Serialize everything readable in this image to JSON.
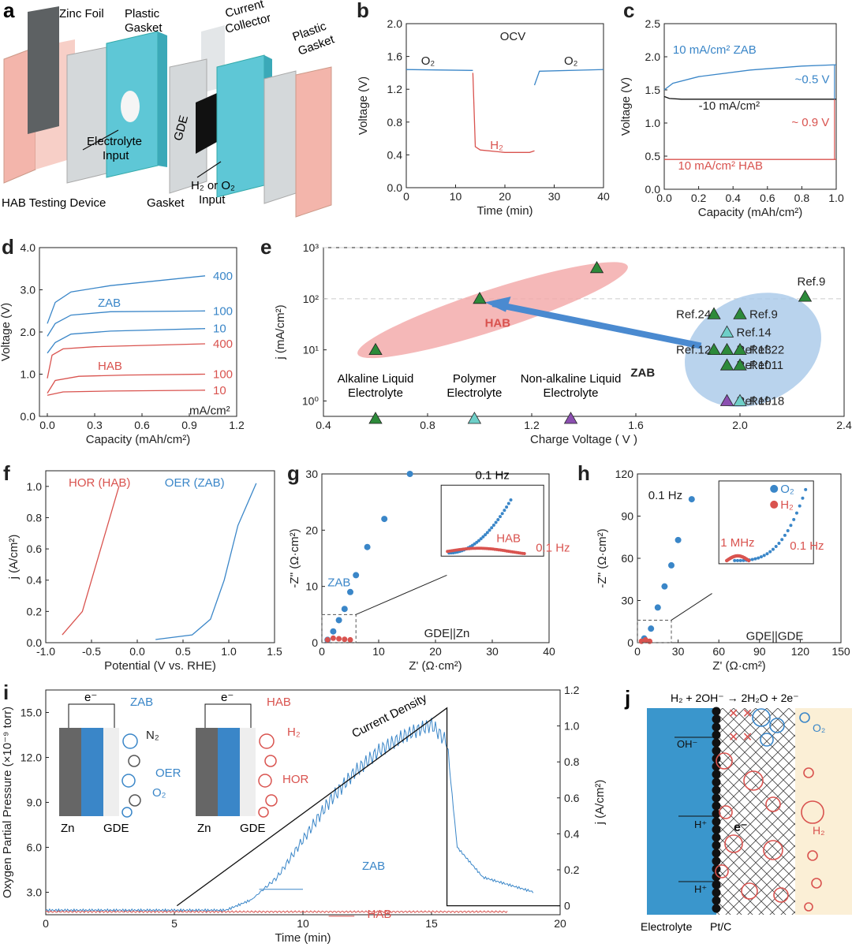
{
  "colors": {
    "blue": "#3a86c8",
    "red": "#d9534f",
    "lightblue": "#5ec7d6",
    "pink": "#f3a6a6",
    "green": "#2d8a3a",
    "purple": "#8b4fb0",
    "teal": "#6ecfc8",
    "black": "#111111"
  },
  "panels": {
    "a": {
      "label": "a",
      "zinc_foil": "Zinc Foil",
      "plastic_gasket_1": [
        "Plastic",
        "Gasket"
      ],
      "current_collector": [
        "Current",
        "Collector"
      ],
      "plastic_gasket_2": [
        "Plastic",
        "Gasket"
      ],
      "gde": "GDE",
      "electrolyte_input": [
        "Electrolyte",
        "Input"
      ],
      "gas_input": [
        "H₂ or O₂",
        "Input"
      ],
      "gasket": "Gasket",
      "device": "HAB Testing Device"
    },
    "b": {
      "label": "b",
      "ocv": "OCV",
      "o2_left": "O₂",
      "o2_right": "O₂",
      "h2": "H₂"
    },
    "c": {
      "label": "c",
      "zab_label": "10 mA/cm²  ZAB",
      "neg_label": "-10 mA/cm²",
      "hab_label": "10 mA/cm²  HAB",
      "gap1": "~0.5 V",
      "gap2": "~ 0.9 V"
    },
    "d": {
      "label": "d",
      "zab": "ZAB",
      "hab": "HAB",
      "unit": "mA/cm²"
    },
    "e": {
      "label": "e",
      "hab": "HAB",
      "zab": "ZAB",
      "cat1": [
        "Alkaline Liquid",
        "Electrolyte"
      ],
      "cat2": [
        "Polymer",
        "Electrolyte"
      ],
      "cat3": [
        "Non-alkaline Liquid",
        "Electrolyte"
      ]
    },
    "f": {
      "label": "f",
      "hor": "HOR (HAB)",
      "oer": "OER (ZAB)"
    },
    "g": {
      "label": "g",
      "zab": "ZAB",
      "hab": "HAB",
      "hz1": "0.1 Hz",
      "hz2": "0.1 Hz",
      "cell": "GDE||Zn"
    },
    "h": {
      "label": "h",
      "hz": "0.1 Hz",
      "o2": "O₂",
      "h2": "H₂",
      "mhz": "1 MHz",
      "hz2": "0.1 Hz",
      "cell": "GDE||GDE"
    },
    "i": {
      "label": "i",
      "current_density": "Current Density",
      "zab": "ZAB",
      "hab": "HAB",
      "zab_title": "ZAB",
      "hab_title": "HAB",
      "zn": "Zn",
      "gde": "GDE",
      "e": "e⁻",
      "n2": "N₂",
      "oer": "OER",
      "o2": "O₂",
      "h2": "H₂",
      "hor": "HOR"
    },
    "j": {
      "label": "j",
      "reaction": "H₂ + 2OH⁻ → 2H₂O + 2e⁻",
      "oh": "OH⁻",
      "h1": "H⁺",
      "h2": "H⁺",
      "e": "e⁻",
      "o2": "O₂",
      "h2gas": "H₂",
      "electrolyte": "Electrolyte",
      "ptc": "Pt/C"
    }
  },
  "chart_data": [
    {
      "id": "b",
      "type": "line",
      "xlabel": "Time (min)",
      "ylabel": "Voltage (V)",
      "xlim": [
        0,
        40
      ],
      "ylim": [
        0,
        2.0
      ],
      "xticks": [
        "0",
        "10",
        "20",
        "30",
        "40"
      ],
      "yticks": [
        "0.0",
        "0.4",
        "0.8",
        "1.2",
        "1.6",
        "2.0"
      ],
      "series": [
        {
          "name": "O₂",
          "x": [
            0,
            13.5
          ],
          "y": [
            1.44,
            1.43
          ]
        },
        {
          "name": "H₂",
          "x": [
            13.5,
            14,
            15,
            20,
            25,
            26
          ],
          "y": [
            1.4,
            0.5,
            0.46,
            0.43,
            0.43,
            0.45
          ]
        },
        {
          "name": "O₂",
          "x": [
            26,
            27,
            40
          ],
          "y": [
            1.25,
            1.42,
            1.44
          ]
        }
      ]
    },
    {
      "id": "c",
      "type": "line",
      "xlabel": "Capacity (mAh/cm²)",
      "ylabel": "Voltage (V)",
      "xlim": [
        0,
        1.0
      ],
      "ylim": [
        0,
        2.5
      ],
      "xticks": [
        "0.0",
        "0.2",
        "0.4",
        "0.6",
        "0.8",
        "1.0"
      ],
      "yticks": [
        "0.0",
        "0.5",
        "1.0",
        "1.5",
        "2.0",
        "2.5"
      ],
      "series": [
        {
          "name": "10 mA/cm² ZAB",
          "x": [
            0,
            0.05,
            0.2,
            0.5,
            0.8,
            1.0
          ],
          "y": [
            1.5,
            1.6,
            1.7,
            1.8,
            1.86,
            1.88
          ]
        },
        {
          "name": "-10 mA/cm²",
          "x": [
            0,
            0.03,
            0.1,
            1.0
          ],
          "y": [
            1.4,
            1.37,
            1.36,
            1.36
          ]
        },
        {
          "name": "10 mA/cm² HAB",
          "x": [
            0,
            1.0
          ],
          "y": [
            0.45,
            0.45
          ]
        }
      ]
    },
    {
      "id": "d",
      "type": "line",
      "xlabel": "Capacity (mAh/cm²)",
      "ylabel": "Voltage (V)",
      "xlim": [
        -0.05,
        1.2
      ],
      "ylim": [
        0,
        4.0
      ],
      "xticks": [
        "0.0",
        "0.3",
        "0.6",
        "0.9",
        "1.2"
      ],
      "yticks": [
        "0.0",
        "1.0",
        "2.0",
        "3.0",
        "4.0"
      ],
      "series": [
        {
          "name": "400",
          "color": "blue",
          "x": [
            0,
            0.05,
            0.15,
            0.4,
            1.0
          ],
          "y": [
            2.2,
            2.7,
            2.95,
            3.1,
            3.33
          ]
        },
        {
          "name": "100",
          "color": "blue",
          "x": [
            0,
            0.05,
            0.15,
            0.4,
            1.0
          ],
          "y": [
            1.9,
            2.2,
            2.4,
            2.48,
            2.5
          ]
        },
        {
          "name": "10",
          "color": "blue",
          "x": [
            0,
            0.05,
            0.15,
            0.4,
            1.0
          ],
          "y": [
            1.5,
            1.75,
            1.95,
            2.02,
            2.08
          ]
        },
        {
          "name": "400",
          "color": "red",
          "x": [
            0,
            0.03,
            0.1,
            0.3,
            1.0
          ],
          "y": [
            0.9,
            1.45,
            1.6,
            1.65,
            1.72
          ]
        },
        {
          "name": "100",
          "color": "red",
          "x": [
            0,
            0.05,
            0.2,
            0.5,
            1.0
          ],
          "y": [
            0.55,
            0.85,
            0.95,
            0.98,
            1.0
          ]
        },
        {
          "name": "10",
          "color": "red",
          "x": [
            0,
            0.1,
            0.4,
            1.0
          ],
          "y": [
            0.5,
            0.58,
            0.6,
            0.62
          ]
        }
      ]
    },
    {
      "id": "e",
      "type": "scatter",
      "xlabel": "Charge Voltage ( V )",
      "ylabel": "j (mA/cm²)",
      "xlim": [
        0.4,
        2.4
      ],
      "ylog": true,
      "ylim": [
        0.5,
        1000
      ],
      "xticks": [
        "0.4",
        "0.8",
        "1.2",
        "1.6",
        "2.0",
        "2.4"
      ],
      "points": [
        {
          "x": 0.6,
          "y": 10,
          "c": "green"
        },
        {
          "x": 1.0,
          "y": 100,
          "c": "green"
        },
        {
          "x": 1.45,
          "y": 400,
          "c": "green"
        },
        {
          "x": 0.6,
          "y": 0.45,
          "c": "green",
          "label": ""
        },
        {
          "x": 0.98,
          "y": 0.45,
          "c": "teal"
        },
        {
          "x": 1.35,
          "y": 0.45,
          "c": "purple"
        },
        {
          "x": 2.25,
          "y": 110,
          "c": "green",
          "label": "Ref.9"
        },
        {
          "x": 1.9,
          "y": 50,
          "c": "green",
          "label": "Ref.24"
        },
        {
          "x": 2.0,
          "y": 50,
          "c": "green",
          "label": "Ref.9"
        },
        {
          "x": 1.95,
          "y": 22,
          "c": "teal",
          "label": "Ref.14"
        },
        {
          "x": 1.9,
          "y": 10,
          "c": "green",
          "label": "Ref.12"
        },
        {
          "x": 1.95,
          "y": 10,
          "c": "green",
          "label": "Ref.13"
        },
        {
          "x": 2.0,
          "y": 10,
          "c": "green",
          "label": "Ref.22"
        },
        {
          "x": 1.95,
          "y": 5,
          "c": "green",
          "label": "Ref.10"
        },
        {
          "x": 2.0,
          "y": 5,
          "c": "green",
          "label": "Ref.11"
        },
        {
          "x": 1.95,
          "y": 1,
          "c": "purple",
          "label": "Ref.19"
        },
        {
          "x": 2.0,
          "y": 1,
          "c": "teal",
          "label": "Ref.18"
        }
      ]
    },
    {
      "id": "f",
      "type": "line",
      "xlabel": "Potential (V vs. RHE)",
      "ylabel": "j (A/cm²)",
      "xlim": [
        -1.0,
        1.5
      ],
      "ylim": [
        0,
        1.1
      ],
      "xticks": [
        "-1.0",
        "-0.5",
        "0.0",
        "0.5",
        "1.0",
        "1.5"
      ],
      "yticks": [
        "0.0",
        "0.2",
        "0.4",
        "0.6",
        "0.8",
        "1.0"
      ],
      "series": [
        {
          "name": "HOR (HAB)",
          "x": [
            -0.82,
            -0.6,
            -0.5,
            -0.4,
            -0.2
          ],
          "y": [
            0.05,
            0.2,
            0.4,
            0.6,
            1.0
          ]
        },
        {
          "name": "OER (ZAB)",
          "x": [
            0.2,
            0.6,
            0.8,
            0.95,
            1.1,
            1.3
          ],
          "y": [
            0.02,
            0.05,
            0.15,
            0.4,
            0.75,
            1.02
          ]
        }
      ]
    },
    {
      "id": "g",
      "type": "scatter",
      "xlabel": "Z' (Ω·cm²)",
      "ylabel": "-Z'' (Ω·cm²)",
      "xlim": [
        0,
        40
      ],
      "ylim": [
        0,
        30
      ],
      "xticks": [
        "0",
        "10",
        "20",
        "30",
        "40"
      ],
      "yticks": [
        "0",
        "10",
        "20",
        "30"
      ],
      "series": [
        {
          "name": "ZAB",
          "x": [
            1,
            2,
            3,
            4,
            5,
            6,
            8,
            11,
            15.5
          ],
          "y": [
            0.5,
            2,
            4,
            6,
            9,
            12,
            17,
            22,
            30
          ]
        },
        {
          "name": "HAB",
          "x": [
            1,
            2,
            3,
            4,
            5
          ],
          "y": [
            0.5,
            0.8,
            0.7,
            0.6,
            0.5
          ]
        }
      ]
    },
    {
      "id": "h",
      "type": "scatter",
      "xlabel": "Z' (Ω·cm²)",
      "ylabel": "-Z'' (Ω·cm²)",
      "xlim": [
        0,
        150
      ],
      "ylim": [
        0,
        120
      ],
      "xticks": [
        "0",
        "30",
        "60",
        "90",
        "120",
        "150"
      ],
      "yticks": [
        "0",
        "30",
        "60",
        "90",
        "120"
      ],
      "series": [
        {
          "name": "O₂",
          "x": [
            5,
            10,
            15,
            20,
            25,
            30,
            40
          ],
          "y": [
            3,
            10,
            25,
            40,
            55,
            73,
            102
          ]
        },
        {
          "name": "H₂",
          "x": [
            3,
            6,
            9
          ],
          "y": [
            1,
            2,
            1
          ]
        }
      ]
    },
    {
      "id": "i",
      "type": "line",
      "xlabel": "Time (min)",
      "ylabel": "Oxygen Partial Pressure (×10⁻⁹ torr)",
      "y2label": "j (A/cm²)",
      "xlim": [
        0,
        20
      ],
      "ylim": [
        1.5,
        16.5
      ],
      "y2lim": [
        -0.05,
        1.2
      ],
      "xticks": [
        "0",
        "5",
        "10",
        "15",
        "20"
      ],
      "yticks": [
        "3.0",
        "6.0",
        "9.0",
        "12.0",
        "15.0"
      ],
      "y2ticks": [
        "0",
        "0.2",
        "0.4",
        "0.6",
        "0.8",
        "1.0",
        "1.2"
      ],
      "series": [
        {
          "name": "ZAB",
          "x": [
            0,
            7,
            8,
            9,
            10,
            11,
            12,
            13,
            14,
            15,
            15.6,
            16,
            17,
            19
          ],
          "y": [
            1.8,
            1.8,
            2.5,
            4,
            6.5,
            9,
            11,
            12.5,
            13.5,
            14.2,
            13,
            6,
            4,
            3
          ]
        },
        {
          "name": "HAB",
          "x": [
            0,
            18
          ],
          "y": [
            1.7,
            1.7
          ]
        },
        {
          "name": "Current Density",
          "x": [
            5.1,
            15.6,
            15.6,
            20
          ],
          "y": [
            0,
            1.1,
            0,
            0
          ]
        }
      ]
    }
  ]
}
